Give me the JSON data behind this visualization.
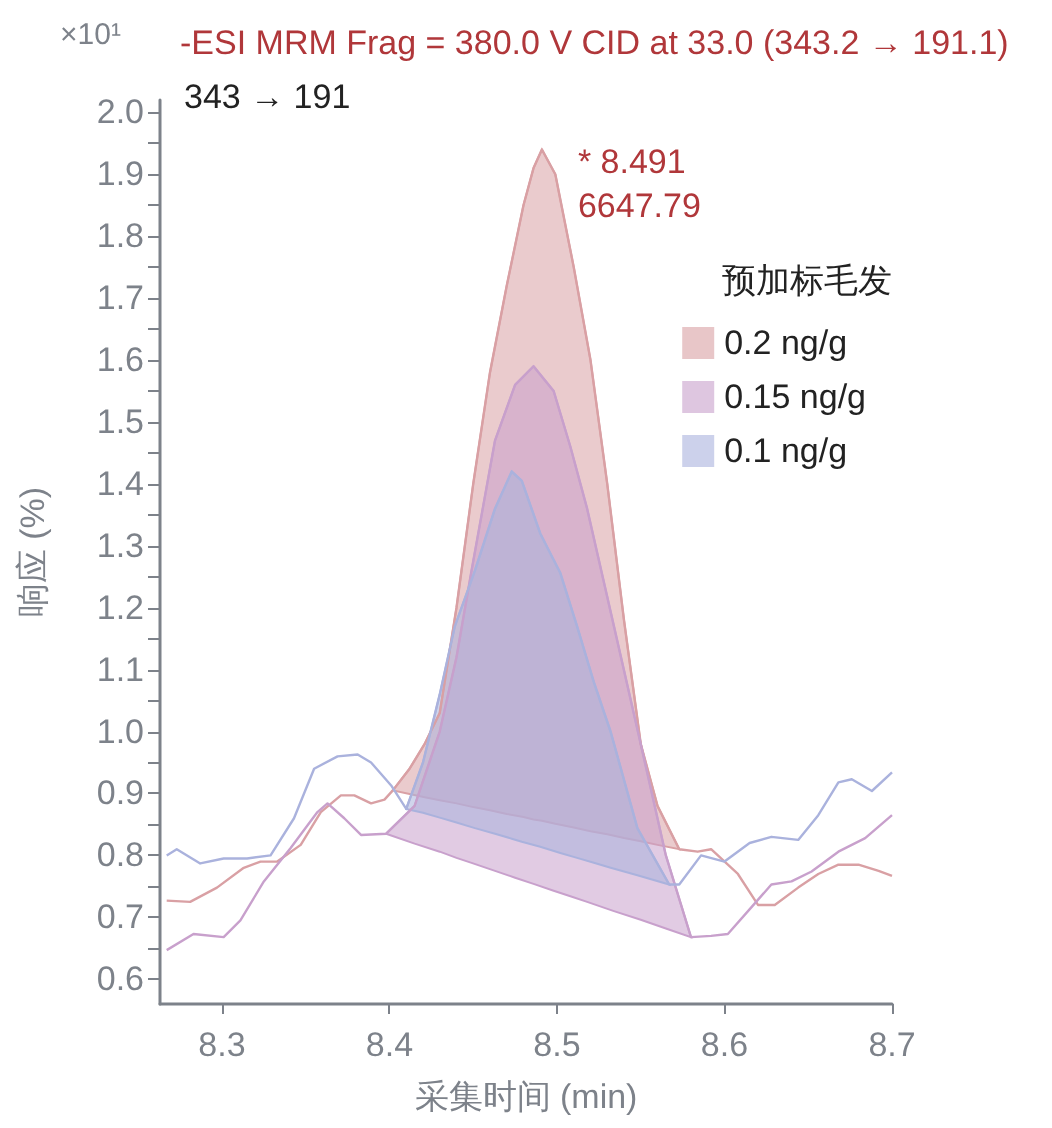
{
  "chart_data": {
    "type": "line",
    "title": "-ESI MRM Frag = 380.0 V CID at 33.0 (343.2 → 191.1)",
    "xlabel": "采集时间 (min)",
    "ylabel": "响应 (%)",
    "legend_title": "预加标毛发",
    "legend": "top right",
    "grid": false,
    "annotations": [
      "×10¹",
      "343 → 191",
      {
        "text": "* 8.491\n6647.79",
        "x": 8.491,
        "y": 1.94
      }
    ],
    "xlim": [
      8.263,
      8.7
    ],
    "xticks": [
      8.3,
      8.4,
      8.5,
      8.6,
      8.7
    ],
    "ylim": [
      0.56,
      2.02
    ],
    "yticks": [
      0.6,
      0.7,
      0.8,
      0.9,
      {
        "value": 1,
        "label": "1.0"
      },
      1.1,
      1.2,
      1.3,
      1.4,
      1.5,
      1.6,
      1.7,
      1.8,
      1.9,
      {
        "value": 2,
        "label": "2.0"
      }
    ],
    "series": [
      {
        "name": "0.2 ng/g",
        "color": "#d9a0a4",
        "x": [
          8.267,
          8.281,
          8.297,
          8.313,
          8.323,
          8.333,
          8.347,
          8.359,
          8.371,
          8.379,
          8.389,
          8.397,
          8.402,
          8.412,
          8.421,
          8.43,
          8.44,
          8.45,
          8.46,
          8.47,
          8.48,
          8.486,
          8.491,
          8.499,
          8.51,
          8.52,
          8.53,
          8.54,
          8.55,
          8.56,
          8.573,
          8.584,
          8.592,
          8.608,
          8.62,
          8.63,
          8.644,
          8.656,
          8.668,
          8.68,
          8.692,
          8.7
        ],
        "values": [
          0.727,
          0.725,
          0.748,
          0.78,
          0.79,
          0.79,
          0.817,
          0.87,
          0.897,
          0.897,
          0.884,
          0.89,
          0.905,
          0.94,
          0.98,
          1.03,
          1.2,
          1.4,
          1.58,
          1.72,
          1.85,
          1.91,
          1.94,
          1.9,
          1.75,
          1.6,
          1.4,
          1.18,
          0.98,
          0.88,
          0.81,
          0.806,
          0.81,
          0.77,
          0.72,
          0.72,
          0.748,
          0.77,
          0.785,
          0.785,
          0.775,
          0.767
        ],
        "upper": [
          null,
          null,
          null,
          null,
          null,
          null,
          null,
          null,
          null,
          null,
          null,
          null,
          0.905,
          0.94,
          0.98,
          1.03,
          1.2,
          1.4,
          1.58,
          1.72,
          1.85,
          1.91,
          1.94,
          1.9,
          1.75,
          1.6,
          1.4,
          1.18,
          0.98,
          0.88,
          0.81,
          null,
          null,
          null,
          null,
          null,
          null,
          null,
          null,
          null,
          null,
          null
        ],
        "lower": [
          null,
          null,
          null,
          null,
          null,
          null,
          null,
          null,
          null,
          null,
          null,
          null,
          0.905,
          0.899,
          0.894,
          0.889,
          0.884,
          0.878,
          0.873,
          0.867,
          0.862,
          0.858,
          0.856,
          0.851,
          0.845,
          0.839,
          0.834,
          0.828,
          0.823,
          0.817,
          0.81,
          null,
          null,
          null,
          null,
          null,
          null,
          null,
          null,
          null,
          null,
          null
        ]
      },
      {
        "name": "0.15 ng/g",
        "color": "#c8a0cc",
        "x": [
          8.267,
          8.283,
          8.301,
          8.311,
          8.325,
          8.341,
          8.357,
          8.363,
          8.373,
          8.383,
          8.398,
          8.415,
          8.43,
          8.44,
          8.449,
          8.463,
          8.475,
          8.486,
          8.498,
          8.508,
          8.518,
          8.534,
          8.55,
          8.565,
          8.58,
          8.592,
          8.602,
          8.616,
          8.628,
          8.64,
          8.652,
          8.668,
          8.684,
          8.7
        ],
        "values": [
          0.647,
          0.673,
          0.668,
          0.695,
          0.758,
          0.812,
          0.87,
          0.884,
          0.86,
          0.833,
          0.835,
          0.88,
          1.0,
          1.12,
          1.26,
          1.47,
          1.56,
          1.59,
          1.55,
          1.46,
          1.36,
          1.17,
          0.98,
          0.8,
          0.668,
          0.67,
          0.673,
          0.716,
          0.753,
          0.758,
          0.774,
          0.806,
          0.828,
          0.865
        ],
        "upper": [
          null,
          null,
          null,
          null,
          null,
          null,
          null,
          null,
          null,
          null,
          0.835,
          0.88,
          1.0,
          1.12,
          1.26,
          1.47,
          1.56,
          1.59,
          1.55,
          1.46,
          1.36,
          1.17,
          0.98,
          0.8,
          0.668,
          null,
          null,
          null,
          null,
          null,
          null,
          null,
          null,
          null
        ],
        "lower": [
          null,
          null,
          null,
          null,
          null,
          null,
          null,
          null,
          null,
          null,
          0.835,
          0.819,
          0.806,
          0.796,
          0.788,
          0.775,
          0.764,
          0.754,
          0.743,
          0.734,
          0.725,
          0.71,
          0.696,
          0.682,
          0.668,
          null,
          null,
          null,
          null,
          null,
          null,
          null,
          null,
          null
        ]
      },
      {
        "name": "0.1 ng/g",
        "color": "#aab2dd",
        "x": [
          8.267,
          8.273,
          8.287,
          8.301,
          8.315,
          8.329,
          8.343,
          8.355,
          8.369,
          8.381,
          8.389,
          8.401,
          8.41,
          8.42,
          8.43,
          8.439,
          8.451,
          8.463,
          8.473,
          8.479,
          8.49,
          8.502,
          8.512,
          8.522,
          8.532,
          8.548,
          8.567,
          8.573,
          8.586,
          8.6,
          8.615,
          8.628,
          8.644,
          8.656,
          8.668,
          8.676,
          8.688,
          8.7
        ],
        "values": [
          0.8,
          0.81,
          0.787,
          0.795,
          0.795,
          0.8,
          0.86,
          0.94,
          0.96,
          0.963,
          0.95,
          0.913,
          0.875,
          0.95,
          1.06,
          1.17,
          1.26,
          1.36,
          1.42,
          1.405,
          1.32,
          1.256,
          1.17,
          1.08,
          1.0,
          0.844,
          0.753,
          0.753,
          0.8,
          0.79,
          0.82,
          0.83,
          0.825,
          0.865,
          0.918,
          0.923,
          0.904,
          0.934
        ],
        "upper": [
          null,
          null,
          null,
          null,
          null,
          null,
          null,
          null,
          null,
          null,
          null,
          null,
          0.875,
          0.95,
          1.06,
          1.17,
          1.26,
          1.36,
          1.42,
          1.405,
          1.32,
          1.256,
          1.17,
          1.08,
          1.0,
          0.844,
          0.753,
          null,
          null,
          null,
          null,
          null,
          null,
          null,
          null,
          null,
          null,
          null
        ],
        "lower": [
          null,
          null,
          null,
          null,
          null,
          null,
          null,
          null,
          null,
          null,
          null,
          null,
          0.875,
          0.869,
          0.861,
          0.854,
          0.844,
          0.835,
          0.827,
          0.822,
          0.814,
          0.804,
          0.796,
          0.788,
          0.78,
          0.768,
          0.753,
          null,
          null,
          null,
          null,
          null,
          null,
          null,
          null,
          null,
          null,
          null
        ]
      }
    ]
  }
}
